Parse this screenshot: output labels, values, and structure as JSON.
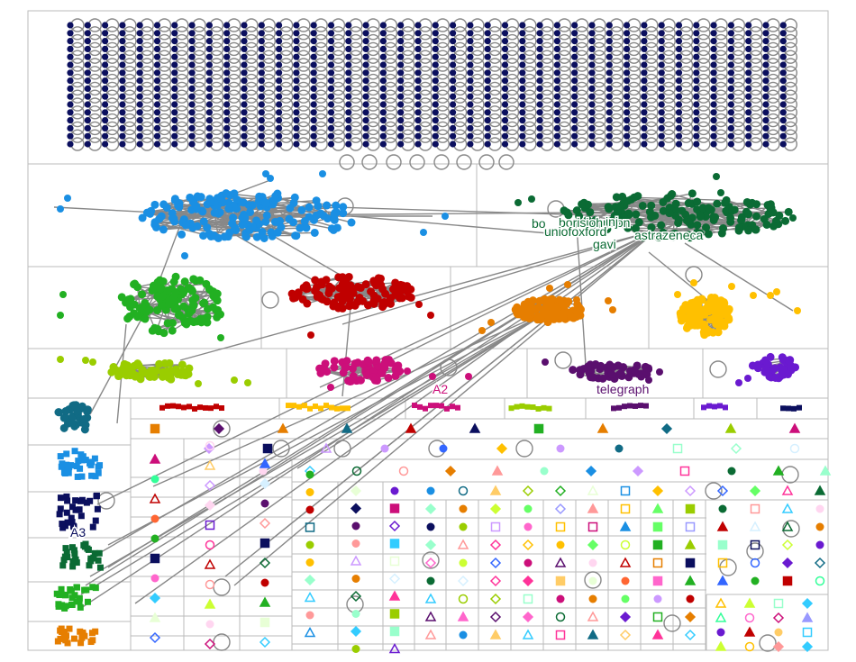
{
  "graph": {
    "node_labels": {
      "bo": "bo",
      "boris": "borisjohnson",
      "uniofoxford": "uniofoxford",
      "gavi": "gavi",
      "astrazeneca": "astrazeneca",
      "jnj": "jnj",
      "telegraph": "telegraph"
    },
    "group_labels": {
      "a2": "A2",
      "a3": "A3"
    }
  },
  "colors": {
    "background": "#ffffff",
    "frame": "#bbbbbb",
    "edge": "#888888",
    "g1_navy": "#0b0f5e",
    "g2_blue": "#1a8fe3",
    "g3_darkgreen": "#0b6b34",
    "g4_green": "#22b022",
    "g5_red": "#c00000",
    "g6_orange": "#e67e00",
    "g7_yellow": "#ffc000",
    "g8_lime": "#9acd00",
    "g9_magenta": "#cc0f7a",
    "g10_purple": "#5a0f6e",
    "g11_violet": "#6a1ad0",
    "g12_teal": "#116b85",
    "label_green": "#0b6b34",
    "label_magenta": "#cc0f7a",
    "label_purple": "#5a0f6e",
    "label_navy": "#0b0f5e"
  }
}
